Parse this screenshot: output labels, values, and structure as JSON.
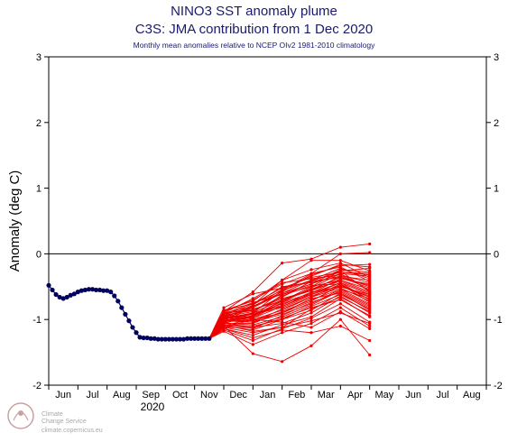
{
  "titles": {
    "main": "NINO3 SST anomaly plume",
    "sub": "C3S: JMA contribution from 1 Dec 2020",
    "note": "Monthly mean anomalies relative to NCEP OIv2 1981-2010 climatology"
  },
  "logo": {
    "line1": "Climate",
    "line2": "Change Service",
    "line3": "climate.copernicus.eu"
  },
  "colors": {
    "observed": "#00005f",
    "forecast": "#ee0000",
    "zero_line": "#000000",
    "title": "#1a1a6e"
  },
  "chart_data": {
    "type": "line",
    "ylabel": "Anomaly (deg C)",
    "ylim": [
      -2,
      3
    ],
    "yticks": [
      -2,
      -1,
      0,
      1,
      2,
      3
    ],
    "x_start_month": "May 2020",
    "month_labels": [
      "Jun",
      "Jul",
      "Aug",
      "Sep",
      "Oct",
      "Nov",
      "Dec",
      "Jan",
      "Feb",
      "Mar",
      "Apr",
      "May",
      "Jun",
      "Jul",
      "Aug"
    ],
    "year_label": "2020",
    "reference_line": 0,
    "observed": {
      "x": [
        0.0,
        0.125,
        0.25,
        0.375,
        0.5,
        0.625,
        0.75,
        0.875,
        1.0,
        1.125,
        1.25,
        1.375,
        1.5,
        1.625,
        1.75,
        1.875,
        2.0,
        2.125,
        2.25,
        2.375,
        2.5,
        2.625,
        2.75,
        2.875,
        3.0,
        3.125,
        3.25,
        3.375,
        3.5,
        3.625,
        3.75,
        3.875,
        4.0,
        4.125,
        4.25,
        4.375,
        4.5,
        4.625,
        4.75,
        4.875,
        5.0,
        5.125,
        5.25,
        5.375,
        5.5
      ],
      "values": [
        -0.48,
        -0.55,
        -0.62,
        -0.66,
        -0.68,
        -0.66,
        -0.63,
        -0.61,
        -0.58,
        -0.56,
        -0.55,
        -0.54,
        -0.54,
        -0.55,
        -0.55,
        -0.56,
        -0.56,
        -0.58,
        -0.64,
        -0.72,
        -0.82,
        -0.92,
        -1.02,
        -1.12,
        -1.2,
        -1.27,
        -1.28,
        -1.28,
        -1.29,
        -1.29,
        -1.3,
        -1.3,
        -1.3,
        -1.3,
        -1.3,
        -1.3,
        -1.3,
        -1.3,
        -1.29,
        -1.29,
        -1.29,
        -1.29,
        -1.29,
        -1.29,
        -1.29
      ]
    },
    "forecast": {
      "start_x": 5.5,
      "start_value": -1.29,
      "x": [
        6,
        7,
        8,
        9,
        10,
        11
      ],
      "members": [
        [
          -0.82,
          -0.61,
          -0.52,
          -0.42,
          -0.26,
          -0.22
        ],
        [
          -0.86,
          -0.76,
          -0.52,
          -0.36,
          -0.28,
          -0.32
        ],
        [
          -0.9,
          -0.86,
          -0.66,
          -0.42,
          -0.36,
          -0.52
        ],
        [
          -0.94,
          -0.96,
          -0.62,
          -0.5,
          -0.4,
          -0.58
        ],
        [
          -0.98,
          -0.92,
          -0.76,
          -0.62,
          -0.44,
          -0.62
        ],
        [
          -1.0,
          -1.02,
          -0.9,
          -0.72,
          -0.48,
          -0.66
        ],
        [
          -1.02,
          -1.04,
          -0.84,
          -0.66,
          -0.52,
          -0.72
        ],
        [
          -1.06,
          -1.08,
          -0.96,
          -0.78,
          -0.56,
          -0.78
        ],
        [
          -1.1,
          -1.16,
          -1.0,
          -0.86,
          -0.6,
          -0.86
        ],
        [
          -1.08,
          -1.12,
          -1.06,
          -0.9,
          -0.64,
          -0.9
        ],
        [
          -1.14,
          -1.24,
          -1.08,
          -0.96,
          -0.68,
          -0.96
        ],
        [
          -1.16,
          -1.32,
          -1.14,
          -0.98,
          -0.76,
          -1.04
        ],
        [
          -1.18,
          -1.38,
          -1.2,
          -1.06,
          -0.82,
          -1.1
        ],
        [
          -0.92,
          -0.82,
          -0.6,
          -0.46,
          -0.24,
          -0.28
        ],
        [
          -1.04,
          -0.9,
          -0.7,
          -0.56,
          -0.34,
          -0.4
        ],
        [
          -0.96,
          -0.98,
          -0.8,
          -0.6,
          -0.38,
          -0.46
        ],
        [
          -1.0,
          -0.8,
          -0.58,
          -0.32,
          -0.18,
          -0.16
        ],
        [
          -0.88,
          -0.7,
          -0.46,
          -0.3,
          -0.2,
          -0.42
        ],
        [
          -1.12,
          -1.0,
          -0.86,
          -0.66,
          -0.46,
          -0.7
        ],
        [
          -0.94,
          -0.84,
          -0.72,
          -0.54,
          -0.42,
          -0.6
        ],
        [
          -1.02,
          -0.94,
          -0.78,
          -0.58,
          -0.5,
          -0.64
        ],
        [
          -1.06,
          -1.06,
          -0.88,
          -0.7,
          -0.54,
          -0.68
        ],
        [
          -0.86,
          -0.72,
          -0.4,
          -0.24,
          -0.14,
          -0.36
        ],
        [
          -1.08,
          -1.1,
          -1.0,
          -0.8,
          -0.62,
          -0.84
        ],
        [
          -0.98,
          -0.78,
          -0.5,
          -0.44,
          -0.34,
          -0.5
        ],
        [
          -1.1,
          -0.98,
          -0.74,
          -0.52,
          -0.3,
          -0.56
        ],
        [
          -0.96,
          -0.88,
          -0.64,
          -0.48,
          -0.46,
          -0.74
        ],
        [
          -1.04,
          -1.14,
          -0.94,
          -0.74,
          -0.58,
          -0.8
        ],
        [
          -0.9,
          -0.68,
          -0.44,
          -0.38,
          -0.32,
          -0.44
        ],
        [
          -1.0,
          -0.92,
          -0.82,
          -0.64,
          -0.5,
          -0.62
        ],
        [
          -1.12,
          -1.2,
          -1.12,
          -0.84,
          -0.66,
          -0.88
        ],
        [
          -0.94,
          -0.86,
          -0.68,
          -0.56,
          -0.4,
          -0.54
        ],
        [
          -1.02,
          -0.96,
          -0.74,
          -0.6,
          -0.44,
          -0.7
        ],
        [
          -0.88,
          -0.58,
          -0.14,
          -0.08,
          0.1,
          0.15
        ],
        [
          -1.06,
          -0.78,
          -0.4,
          -0.1,
          -0.1,
          -0.26
        ],
        [
          -1.0,
          -0.9,
          -0.56,
          -0.3,
          0.0,
          0.02
        ],
        [
          -1.1,
          -1.52,
          -1.64,
          -1.4,
          -1.0,
          -1.54
        ],
        [
          -1.14,
          -1.28,
          -1.16,
          -1.2,
          -1.1,
          -1.32
        ],
        [
          -0.98,
          -1.0,
          -1.04,
          -1.12,
          -0.88,
          -1.14
        ],
        [
          -1.08,
          -1.18,
          -1.12,
          -1.02,
          -0.9,
          -1.06
        ],
        [
          -0.92,
          -0.74,
          -0.62,
          -0.46,
          -0.3,
          -0.34
        ],
        [
          -1.04,
          -0.96,
          -0.7,
          -0.54,
          -0.36,
          -0.48
        ],
        [
          -0.96,
          -0.82,
          -0.54,
          -0.34,
          -0.16,
          -0.2
        ],
        [
          -1.0,
          -1.04,
          -0.92,
          -0.76,
          -0.54,
          -0.76
        ],
        [
          -1.12,
          -1.12,
          -0.98,
          -0.82,
          -0.7,
          -0.94
        ],
        [
          -0.9,
          -0.8,
          -0.6,
          -0.4,
          -0.22,
          -0.38
        ],
        [
          -1.06,
          -0.94,
          -0.72,
          -0.5,
          -0.26,
          -0.58
        ],
        [
          -0.98,
          -0.9,
          -0.8,
          -0.62,
          -0.48,
          -0.66
        ],
        [
          -1.02,
          -1.0,
          -0.9,
          -0.68,
          -0.6,
          -0.82
        ],
        [
          -0.94,
          -0.76,
          -0.56,
          -0.4,
          -0.28,
          -0.3
        ]
      ]
    }
  }
}
